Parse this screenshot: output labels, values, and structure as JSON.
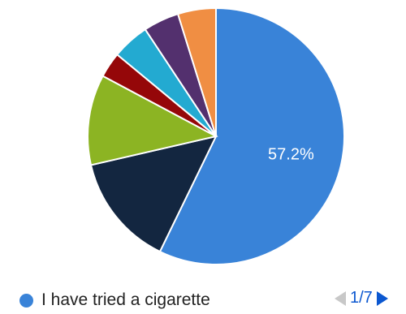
{
  "chart_data": {
    "type": "pie",
    "categories": [
      "I have tried a cigarette",
      "",
      "",
      "",
      "",
      "",
      ""
    ],
    "values": [
      57.2,
      14.2,
      11.4,
      3.2,
      4.7,
      4.5,
      4.8
    ],
    "colors": [
      "#3983d8",
      "#132640",
      "#8cb423",
      "#950709",
      "#23aad1",
      "#53306e",
      "#f08e43"
    ],
    "slice_labels": [
      "57.2%",
      "",
      "",
      "",
      "",
      "",
      ""
    ],
    "legend_placement": "bottom",
    "start_angle_deg": 0,
    "direction": "clockwise"
  },
  "legend": {
    "label": "I have tried a cigarette",
    "color": "#3983d8"
  },
  "pager": {
    "text": "1/7",
    "prev_icon": "triangle-left-icon",
    "next_icon": "triangle-right-icon",
    "prev_color": "#c8c8c8",
    "next_color": "#0b57d0"
  }
}
